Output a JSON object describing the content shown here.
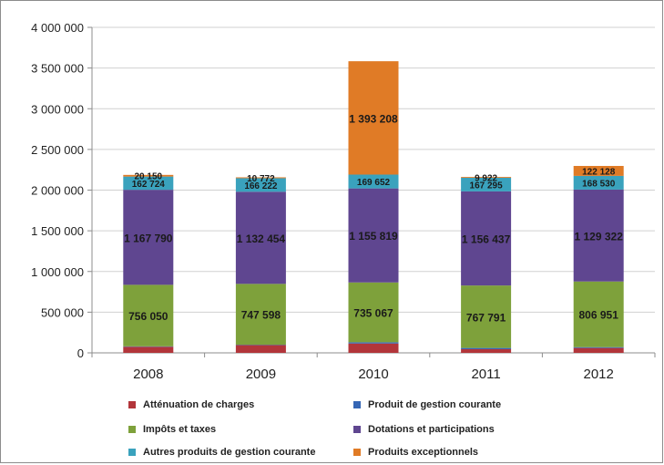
{
  "chart_data": {
    "type": "bar",
    "stacked": true,
    "categories": [
      "2008",
      "2009",
      "2010",
      "2011",
      "2012"
    ],
    "y_ticks": [
      "0",
      "500 000",
      "1 000 000",
      "1 500 000",
      "2 000 000",
      "2 500 000",
      "3 000 000",
      "3 500 000",
      "4 000 000"
    ],
    "ylim": [
      0,
      4000000
    ],
    "grid": true,
    "legend_position": "bottom",
    "series": [
      {
        "name": "Atténuation de charges",
        "color": "#b2353a",
        "values": [
          75000,
          95000,
          115000,
          45000,
          60000
        ],
        "labels": [
          "",
          "",
          "",
          "",
          ""
        ]
      },
      {
        "name": "Produit de gestion courante",
        "color": "#3566b5",
        "values": [
          5000,
          5000,
          15000,
          15000,
          10000
        ],
        "labels": [
          "",
          "",
          "",
          "",
          ""
        ]
      },
      {
        "name": "Impôts et taxes",
        "color": "#7ea13b",
        "values": [
          756050,
          747598,
          735067,
          767791,
          806951
        ],
        "labels": [
          "756 050",
          "747 598",
          "735 067",
          "767 791",
          "806 951"
        ]
      },
      {
        "name": "Dotations et participations",
        "color": "#5f4690",
        "values": [
          1167790,
          1132454,
          1155819,
          1156437,
          1129322
        ],
        "labels": [
          "1 167 790",
          "1 132 454",
          "1 155 819",
          "1 156 437",
          "1 129 322"
        ]
      },
      {
        "name": "Autres produits de gestion courante",
        "color": "#3aa2bd",
        "values": [
          162724,
          166222,
          169652,
          167295,
          168530
        ],
        "labels": [
          "162 724",
          "166 222",
          "169 652",
          "167 295",
          "168 530"
        ]
      },
      {
        "name": "Produits exceptionnels",
        "color": "#e07b26",
        "values": [
          20150,
          10772,
          1393208,
          9922,
          122128
        ],
        "labels": [
          "20 150",
          "10 772",
          "1 393 208",
          "9 922",
          "122 128"
        ]
      }
    ]
  }
}
